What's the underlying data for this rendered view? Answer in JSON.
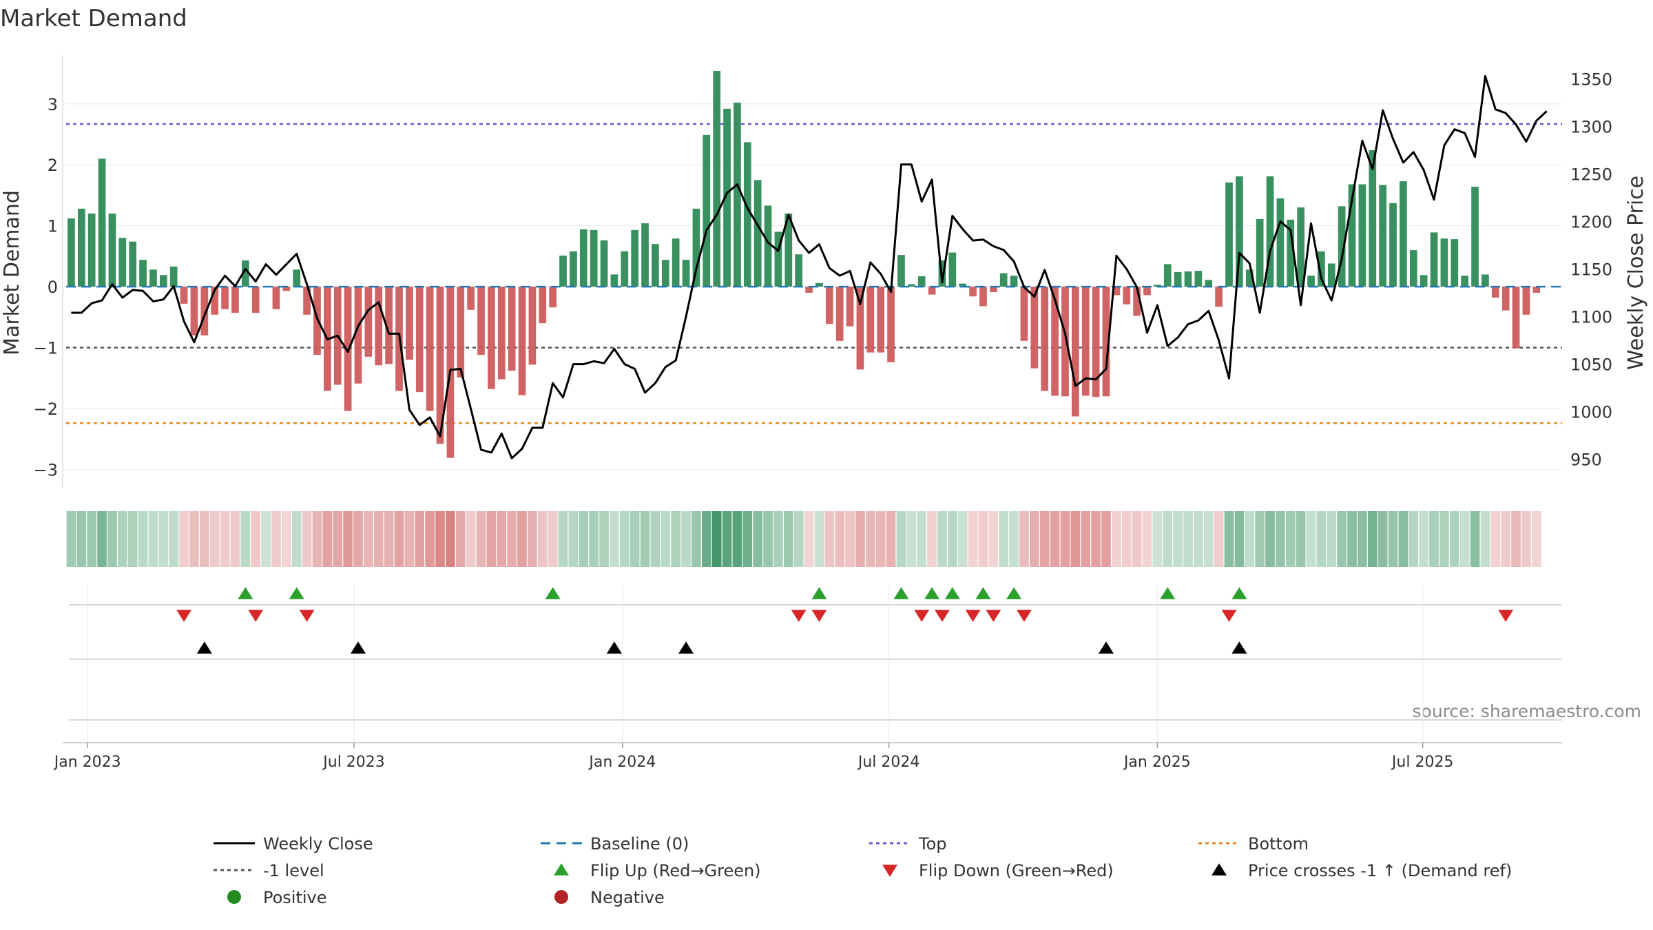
{
  "chart_data": {
    "type": "bar",
    "title": "Market Demand",
    "ylabel": "Market Demand",
    "y2label": "Weekly Close Price",
    "source": "source: sharemaestro.com",
    "ylim": [
      -3.3,
      3.8
    ],
    "y_ticks": [
      3,
      2,
      1,
      0,
      -1,
      -2,
      -3
    ],
    "y_tick_labels": [
      "3",
      "2",
      "1",
      "0",
      "−1",
      "−2",
      "−3"
    ],
    "y2lim": [
      920,
      1375
    ],
    "y2_ticks": [
      1350,
      1300,
      1250,
      1200,
      1150,
      1100,
      1050,
      1000,
      950
    ],
    "y2_tick_labels": [
      "1350",
      "1300",
      "1250",
      "1200",
      "1150",
      "1100",
      "1050",
      "1000",
      "950"
    ],
    "x_start": "2023-01-02",
    "week_count": 146,
    "x_ticks": [
      {
        "label": "Jan 2023",
        "week": 1.6
      },
      {
        "label": "Jul 2023",
        "week": 27.6
      },
      {
        "label": "Jan 2024",
        "week": 53.8
      },
      {
        "label": "Jul 2024",
        "week": 79.8
      },
      {
        "label": "Jan 2025",
        "week": 106
      },
      {
        "label": "Jul 2025",
        "week": 131.9
      }
    ],
    "reference_lines": {
      "top": 2.67,
      "bottom": -2.24,
      "minus_one": -1,
      "baseline": 0
    },
    "demand": [
      1.12,
      1.28,
      1.2,
      2.1,
      1.2,
      0.8,
      0.74,
      0.44,
      0.28,
      0.19,
      0.33,
      -0.28,
      -0.8,
      -0.8,
      -0.46,
      -0.37,
      -0.43,
      0.43,
      -0.43,
      0,
      -0.37,
      -0.07,
      0.28,
      -0.46,
      -1.12,
      -1.71,
      -1.61,
      -2.04,
      -1.59,
      -1.15,
      -1.29,
      -1.27,
      -1.71,
      -1.2,
      -1.73,
      -2.04,
      -2.58,
      -2.81,
      -1.49,
      -0.38,
      -1.12,
      -1.68,
      -1.52,
      -1.38,
      -1.78,
      -1.28,
      -0.6,
      -0.34,
      0.51,
      0.58,
      0.94,
      0.93,
      0.76,
      0.2,
      0.58,
      0.93,
      1.04,
      0.7,
      0.44,
      0.79,
      0.44,
      1.28,
      2.49,
      3.54,
      2.92,
      3.02,
      2.37,
      1.75,
      1.33,
      0.9,
      1.2,
      0.53,
      -0.1,
      0.06,
      -0.61,
      -0.89,
      -0.65,
      -1.36,
      -1.08,
      -1.08,
      -1.24,
      0.52,
      0.04,
      0.17,
      -0.13,
      0.43,
      0.56,
      0.05,
      -0.16,
      -0.32,
      -0.09,
      0.22,
      0.18,
      -0.89,
      -1.34,
      -1.71,
      -1.79,
      -1.8,
      -2.13,
      -1.79,
      -1.81,
      -1.8,
      -0.14,
      -0.29,
      -0.48,
      -0.14,
      0.03,
      0.37,
      0.24,
      0.25,
      0.26,
      0.11,
      -0.33,
      1.71,
      1.81,
      0.28,
      1.11,
      1.81,
      1.45,
      1.1,
      1.3,
      0.18,
      0.58,
      0.38,
      1.32,
      1.68,
      1.68,
      2.24,
      1.67,
      1.37,
      1.73,
      0.6,
      0.19,
      0.89,
      0.79,
      0.78,
      0.18,
      1.64,
      0.2,
      -0.18,
      -0.39,
      -1.01,
      -0.46,
      -0.1
    ],
    "weekly_close": [
      1104,
      1104,
      1114,
      1117,
      1134,
      1120,
      1128,
      1127,
      1116,
      1118,
      1132,
      1095,
      1073,
      1101,
      1128,
      1143,
      1132,
      1150,
      1137,
      1155,
      1144,
      1155,
      1166,
      1134,
      1098,
      1076,
      1080,
      1063,
      1090,
      1107,
      1115,
      1082,
      1082,
      1002,
      986,
      994,
      974,
      1044,
      1045,
      1003,
      960,
      957,
      977,
      951,
      961,
      983,
      983,
      1030,
      1015,
      1050,
      1050,
      1053,
      1051,
      1066,
      1050,
      1045,
      1020,
      1030,
      1047,
      1054,
      1100,
      1150,
      1191,
      1207,
      1230,
      1239,
      1214,
      1196,
      1178,
      1169,
      1207,
      1180,
      1167,
      1176,
      1151,
      1143,
      1148,
      1113,
      1157,
      1145,
      1126,
      1260,
      1260,
      1221,
      1244,
      1136,
      1206,
      1192,
      1180,
      1181,
      1174,
      1170,
      1158,
      1131,
      1121,
      1149,
      1118,
      1082,
      1027,
      1035,
      1034,
      1045,
      1164,
      1150,
      1131,
      1083,
      1112,
      1069,
      1078,
      1092,
      1096,
      1106,
      1075,
      1035,
      1167,
      1156,
      1104,
      1169,
      1200,
      1191,
      1112,
      1198,
      1140,
      1117,
      1161,
      1223,
      1285,
      1255,
      1317,
      1287,
      1262,
      1273,
      1254,
      1223,
      1280,
      1297,
      1293,
      1268,
      1353,
      1318,
      1314,
      1302,
      1284,
      1306,
      1316
    ],
    "flip_up_weeks": [
      17,
      22,
      47,
      73,
      81,
      84,
      86,
      89,
      92,
      107,
      114
    ],
    "flip_down_weeks": [
      11,
      18,
      23,
      71,
      73,
      83,
      85,
      88,
      90,
      93,
      113,
      140
    ],
    "price_cross_weeks": [
      13,
      28,
      53,
      60,
      101,
      114
    ],
    "legend": [
      {
        "label": "Weekly Close",
        "symbol": "line"
      },
      {
        "label": "Baseline (0)",
        "symbol": "dash"
      },
      {
        "label": "Top",
        "symbol": "dot-top"
      },
      {
        "label": "Bottom",
        "symbol": "dot-bottom"
      },
      {
        "label": "-1 level",
        "symbol": "dot-minus"
      },
      {
        "label": "Flip Up (Red→Green)",
        "symbol": "tri-up-green"
      },
      {
        "label": "Flip Down (Green→Red)",
        "symbol": "tri-down-red"
      },
      {
        "label": "Price crosses -1 ↑ (Demand ref)",
        "symbol": "tri-up-black"
      },
      {
        "label": "Positive",
        "symbol": "circle-green"
      },
      {
        "label": "Negative",
        "symbol": "circle-red"
      }
    ],
    "colors": {
      "positive": "#2e8b57",
      "negative": "#cd5c5c",
      "price": "#000000",
      "top": "#6a5acd",
      "bottom": "#e08a1e",
      "minus_one": "#555566",
      "baseline": "#1f77b4",
      "flip_up": "#2ca02c",
      "flip_down": "#d62728",
      "cross": "#000000"
    }
  }
}
